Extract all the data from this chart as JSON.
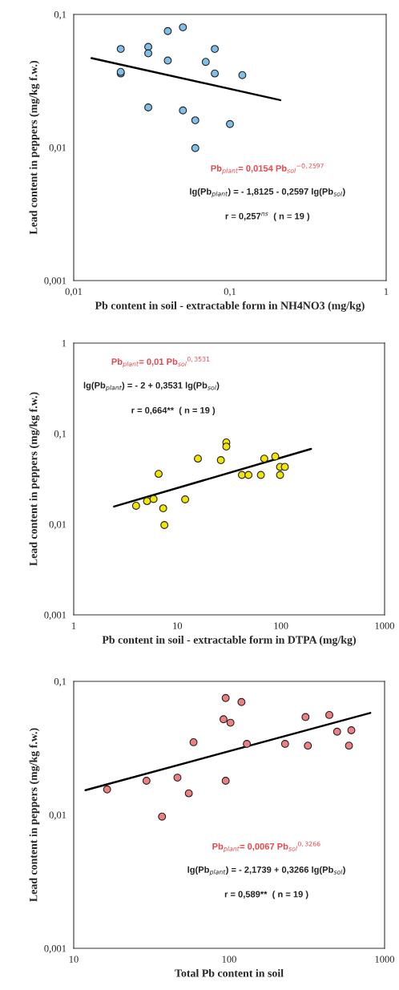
{
  "chart_data": [
    {
      "type": "scatter",
      "xlabel": "Pb content in soil - extractable form in NH4NO3 (mg/kg)",
      "ylabel": "Lead content in peppers (mg/kg f.w.)",
      "log": "xy",
      "xlim": [
        0.01,
        1
      ],
      "ylim": [
        0.001,
        0.1
      ],
      "xticks": [
        {
          "value": 0.01,
          "label": "0,01"
        },
        {
          "value": 0.1,
          "label": "0,1"
        },
        1
      ],
      "yticks": [
        {
          "value": 0.001,
          "label": "0,001"
        },
        {
          "value": 0.01,
          "label": "0,01"
        },
        {
          "value": 0.1,
          "label": "0,1"
        }
      ],
      "series": [
        {
          "marker": "circle",
          "color": "#7fbfe8",
          "x": [
            0.02,
            0.02,
            0.02,
            0.03,
            0.03,
            0.04,
            0.05,
            0.04,
            0.07,
            0.08,
            0.08,
            0.12,
            0.03,
            0.05,
            0.06,
            0.1,
            0.06
          ],
          "values": [
            0.055,
            0.036,
            0.037,
            0.057,
            0.051,
            0.075,
            0.08,
            0.045,
            0.044,
            0.055,
            0.036,
            0.035,
            0.02,
            0.019,
            0.016,
            0.015,
            0.0099
          ]
        },
        {
          "type": "line",
          "color": "#000000",
          "x": [
            0.013,
            0.21
          ],
          "values": [
            0.047,
            0.0227
          ]
        }
      ],
      "annotations": [
        "Pb$_{plant}$= 0,0154 Pb$_{sol}$$^{−0,2597}$",
        "lg(Pb$_{plant}$) = - 1,8125 - 0,2597 lg(Pb$_{sol}$)",
        "r = 0,257$^{ns}$  ( n = 19 )"
      ]
    },
    {
      "type": "scatter",
      "xlabel": "Pb content in soil - extractable form in DTPA (mg/kg)",
      "ylabel": "Lead content in peppers (mg/kg f.w.)",
      "log": "xy",
      "xlim": [
        1,
        1000
      ],
      "ylim": [
        0.001,
        1
      ],
      "xticks": [
        1,
        10,
        100,
        1000
      ],
      "yticks": [
        {
          "value": 0.001,
          "label": "0,001"
        },
        {
          "value": 0.01,
          "label": "0,01"
        },
        {
          "value": 0.1,
          "label": "0,1"
        },
        1
      ],
      "series": [
        {
          "marker": "circle",
          "color": "#f2e600",
          "x": [
            29.7,
            29.7,
            15.8,
            26.3,
            69,
            88,
            6.6,
            42,
            48.6,
            64,
            98,
            98,
            109,
            4.0,
            5.1,
            5.9,
            7.3,
            7.5,
            11.9
          ],
          "values": [
            0.08,
            0.072,
            0.053,
            0.051,
            0.053,
            0.056,
            0.036,
            0.035,
            0.035,
            0.035,
            0.035,
            0.043,
            0.043,
            0.016,
            0.018,
            0.019,
            0.015,
            0.0098,
            0.0188
          ]
        },
        {
          "type": "line",
          "color": "#000000",
          "x": [
            2.45,
            195
          ],
          "values": [
            0.0157,
            0.068
          ]
        }
      ],
      "annotations": [
        "Pb$_{plant}$= 0,01 Pb$_{sol}$$^{0,3531}$",
        "lg(Pb$_{plant}$) = - 2 + 0,3531 lg(Pb$_{sol}$)",
        "r = 0,664**  ( n = 19 )"
      ]
    },
    {
      "type": "scatter",
      "xlabel": "Total Pb content in soil",
      "ylabel": "Lead content in peppers (mg/kg f.w.)",
      "log": "xy",
      "xlim": [
        10,
        1000
      ],
      "ylim": [
        0.001,
        0.1
      ],
      "xticks": [
        10,
        100,
        1000
      ],
      "yticks": [
        {
          "value": 0.001,
          "label": "0,001"
        },
        {
          "value": 0.01,
          "label": "0,01"
        },
        {
          "value": 0.1,
          "label": "0,1"
        }
      ],
      "series": [
        {
          "marker": "circle",
          "color": "#f08080",
          "x": [
            95,
            120,
            92,
            102,
            310,
            441,
            495,
            611,
            59,
            130,
            229,
            321,
            590,
            16.4,
            29.4,
            46.5,
            95,
            55,
            37
          ],
          "values": [
            0.075,
            0.07,
            0.052,
            0.049,
            0.054,
            0.056,
            0.042,
            0.043,
            0.035,
            0.034,
            0.034,
            0.033,
            0.033,
            0.0155,
            0.018,
            0.019,
            0.018,
            0.0145,
            0.0097
          ]
        },
        {
          "type": "line",
          "color": "#000000",
          "x": [
            11.9,
            809
          ],
          "values": [
            0.0153,
            0.058
          ]
        }
      ],
      "annotations": [
        "Pb$_{plant}$= 0,0067 Pb$_{sol}$$^{0,3266}$",
        "lg(Pb$_{plant}$) = - 2,1739 + 0,3266 lg(Pb$_{sol}$)",
        "r = 0,589**  ( n = 19 )"
      ]
    }
  ]
}
